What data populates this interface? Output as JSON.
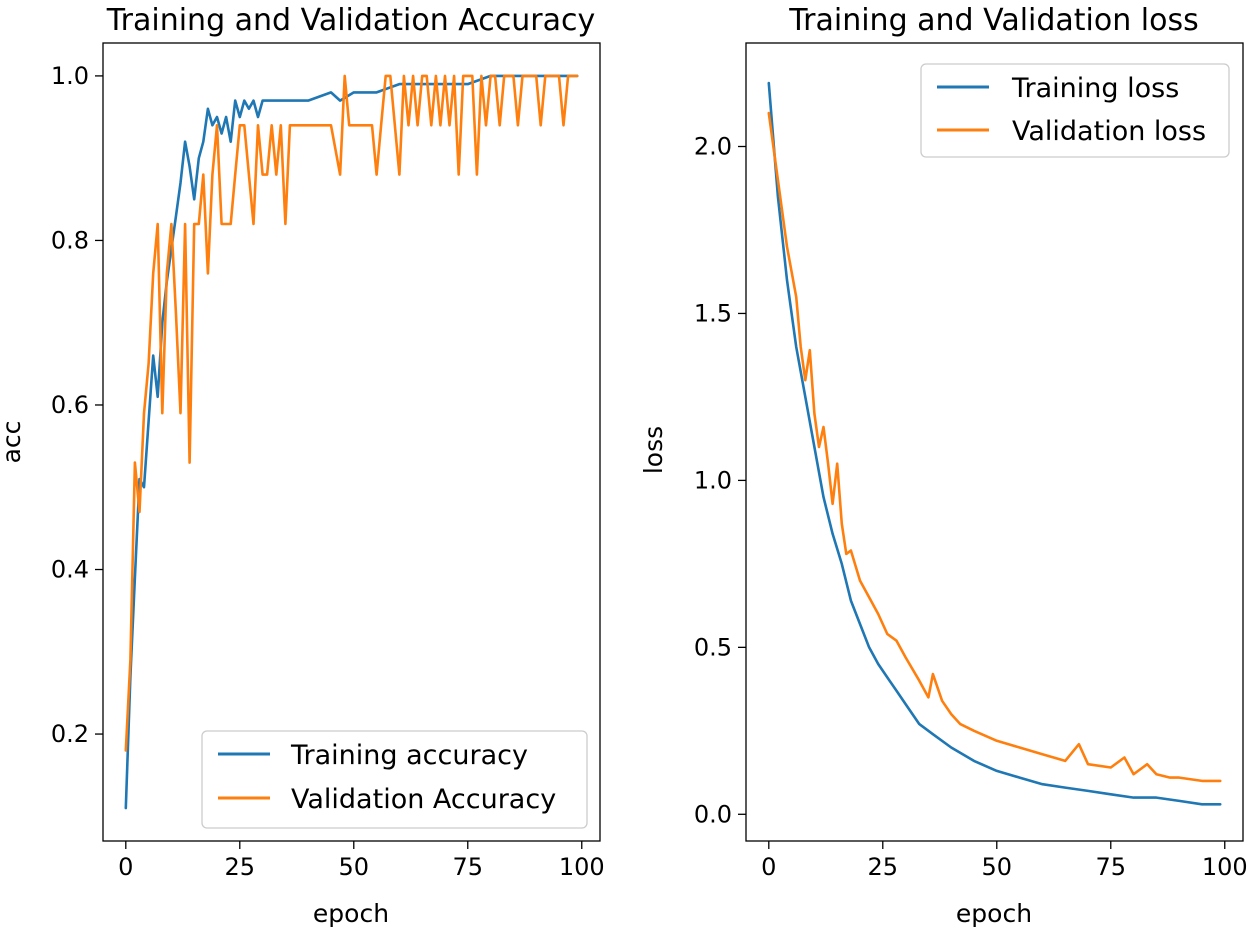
{
  "colors": {
    "training": "#1f77b4",
    "validation": "#ff7f0e",
    "axes": "#000000",
    "legend_border": "#cccccc"
  },
  "chart_data": [
    {
      "type": "line",
      "title": "Training and Validation Accuracy",
      "xlabel": "epoch",
      "ylabel": "acc",
      "xlim": [
        -5,
        104
      ],
      "ylim": [
        0.07,
        1.04
      ],
      "xticks": [
        0,
        25,
        50,
        75,
        100
      ],
      "xtick_labels": [
        "0",
        "25",
        "50",
        "75",
        "100"
      ],
      "yticks": [
        0.2,
        0.4,
        0.6,
        0.8,
        1.0
      ],
      "ytick_labels": [
        "0.2",
        "0.4",
        "0.6",
        "0.8",
        "1.0"
      ],
      "legend_position": "lower-right",
      "grid": false,
      "series": [
        {
          "name": "Training accuracy",
          "x": [
            0,
            1,
            2,
            3,
            4,
            5,
            6,
            7,
            8,
            9,
            10,
            11,
            12,
            13,
            14,
            15,
            16,
            17,
            18,
            19,
            20,
            21,
            22,
            23,
            24,
            25,
            26,
            27,
            28,
            29,
            30,
            35,
            40,
            45,
            47,
            50,
            55,
            60,
            65,
            70,
            75,
            80,
            85,
            90,
            95,
            99
          ],
          "values": [
            0.11,
            0.27,
            0.39,
            0.51,
            0.5,
            0.58,
            0.66,
            0.61,
            0.7,
            0.75,
            0.79,
            0.83,
            0.87,
            0.92,
            0.89,
            0.85,
            0.9,
            0.92,
            0.96,
            0.94,
            0.95,
            0.93,
            0.95,
            0.92,
            0.97,
            0.95,
            0.97,
            0.96,
            0.97,
            0.95,
            0.97,
            0.97,
            0.97,
            0.98,
            0.97,
            0.98,
            0.98,
            0.99,
            0.99,
            0.99,
            0.99,
            1.0,
            1.0,
            1.0,
            1.0,
            1.0
          ]
        },
        {
          "name": "Validation Accuracy",
          "x": [
            0,
            1,
            2,
            3,
            4,
            5,
            6,
            7,
            8,
            9,
            10,
            11,
            12,
            13,
            14,
            15,
            16,
            17,
            18,
            19,
            20,
            21,
            22,
            23,
            24,
            25,
            26,
            27,
            28,
            29,
            30,
            31,
            32,
            33,
            34,
            35,
            36,
            37,
            38,
            40,
            45,
            47,
            48,
            49,
            50,
            52,
            54,
            55,
            56,
            57,
            58,
            60,
            61,
            62,
            63,
            64,
            65,
            66,
            67,
            68,
            69,
            70,
            71,
            72,
            73,
            74,
            75,
            76,
            77,
            78,
            79,
            80,
            81,
            82,
            83,
            84,
            85,
            86,
            87,
            88,
            89,
            90,
            91,
            92,
            93,
            94,
            95,
            96,
            97,
            98,
            99
          ],
          "values": [
            0.18,
            0.29,
            0.53,
            0.47,
            0.59,
            0.65,
            0.76,
            0.82,
            0.59,
            0.76,
            0.82,
            0.71,
            0.59,
            0.82,
            0.53,
            0.82,
            0.82,
            0.88,
            0.76,
            0.88,
            0.94,
            0.82,
            0.82,
            0.82,
            0.88,
            0.94,
            0.94,
            0.88,
            0.82,
            0.94,
            0.88,
            0.88,
            0.94,
            0.88,
            0.94,
            0.82,
            0.94,
            0.94,
            0.94,
            0.94,
            0.94,
            0.88,
            1.0,
            0.94,
            0.94,
            0.94,
            0.94,
            0.88,
            0.94,
            1.0,
            1.0,
            0.88,
            1.0,
            0.94,
            1.0,
            0.94,
            1.0,
            1.0,
            0.94,
            1.0,
            0.94,
            1.0,
            0.94,
            1.0,
            0.88,
            1.0,
            1.0,
            1.0,
            0.88,
            1.0,
            0.94,
            1.0,
            1.0,
            0.94,
            1.0,
            1.0,
            1.0,
            0.94,
            1.0,
            1.0,
            1.0,
            1.0,
            0.94,
            1.0,
            1.0,
            1.0,
            1.0,
            0.94,
            1.0,
            1.0,
            1.0
          ]
        }
      ]
    },
    {
      "type": "line",
      "title": "Training and Validation loss",
      "xlabel": "epoch",
      "ylabel": "loss",
      "xlim": [
        -5,
        104
      ],
      "ylim": [
        -0.08,
        2.31
      ],
      "xticks": [
        0,
        25,
        50,
        75,
        100
      ],
      "xtick_labels": [
        "0",
        "25",
        "50",
        "75",
        "100"
      ],
      "yticks": [
        0.0,
        0.5,
        1.0,
        1.5,
        2.0
      ],
      "ytick_labels": [
        "0.0",
        "0.5",
        "1.0",
        "1.5",
        "2.0"
      ],
      "legend_position": "upper-right",
      "grid": false,
      "series": [
        {
          "name": "Training loss",
          "x": [
            0,
            2,
            4,
            6,
            8,
            10,
            12,
            14,
            16,
            18,
            20,
            22,
            24,
            26,
            28,
            30,
            33,
            36,
            40,
            45,
            50,
            55,
            60,
            65,
            70,
            75,
            80,
            85,
            90,
            95,
            99
          ],
          "values": [
            2.19,
            1.85,
            1.6,
            1.4,
            1.25,
            1.1,
            0.95,
            0.84,
            0.75,
            0.64,
            0.57,
            0.5,
            0.45,
            0.41,
            0.37,
            0.33,
            0.27,
            0.24,
            0.2,
            0.16,
            0.13,
            0.11,
            0.09,
            0.08,
            0.07,
            0.06,
            0.05,
            0.05,
            0.04,
            0.03,
            0.03
          ]
        },
        {
          "name": "Validation loss",
          "x": [
            0,
            2,
            4,
            6,
            7,
            8,
            9,
            10,
            11,
            12,
            13,
            14,
            15,
            16,
            17,
            18,
            20,
            22,
            24,
            26,
            28,
            30,
            33,
            35,
            36,
            38,
            40,
            42,
            45,
            50,
            55,
            60,
            65,
            68,
            70,
            75,
            78,
            80,
            83,
            85,
            88,
            90,
            95,
            99
          ],
          "values": [
            2.1,
            1.9,
            1.7,
            1.55,
            1.4,
            1.3,
            1.39,
            1.2,
            1.1,
            1.16,
            1.05,
            0.93,
            1.05,
            0.87,
            0.78,
            0.79,
            0.7,
            0.65,
            0.6,
            0.54,
            0.52,
            0.47,
            0.4,
            0.35,
            0.42,
            0.34,
            0.3,
            0.27,
            0.25,
            0.22,
            0.2,
            0.18,
            0.16,
            0.21,
            0.15,
            0.14,
            0.17,
            0.12,
            0.15,
            0.12,
            0.11,
            0.11,
            0.1,
            0.1
          ]
        }
      ]
    }
  ]
}
